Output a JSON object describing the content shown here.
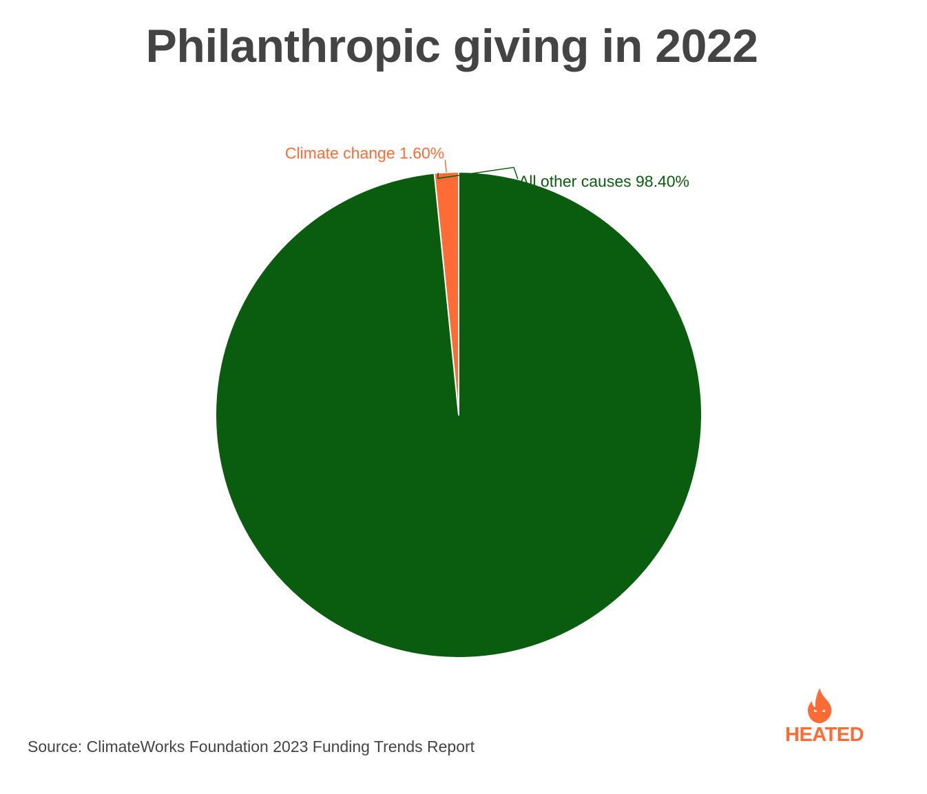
{
  "chart_data": {
    "type": "pie",
    "title": "Philanthropic giving in 2022",
    "slices": [
      {
        "label": "Climate change",
        "value": 1.6,
        "display": "Climate change 1.60%",
        "color": "#ff6b35"
      },
      {
        "label": "All other causes",
        "value": 98.4,
        "display": "All other causes 98.40%",
        "color": "#0a5c0e"
      }
    ],
    "start_angle": "12 o'clock, clockwise",
    "legend": "none"
  },
  "footer": {
    "source": "Source: ClimateWorks Foundation 2023 Funding Trends Report"
  },
  "brand": {
    "name": "HEATED",
    "color": "#ff6b35",
    "icon": "flame-icon"
  }
}
